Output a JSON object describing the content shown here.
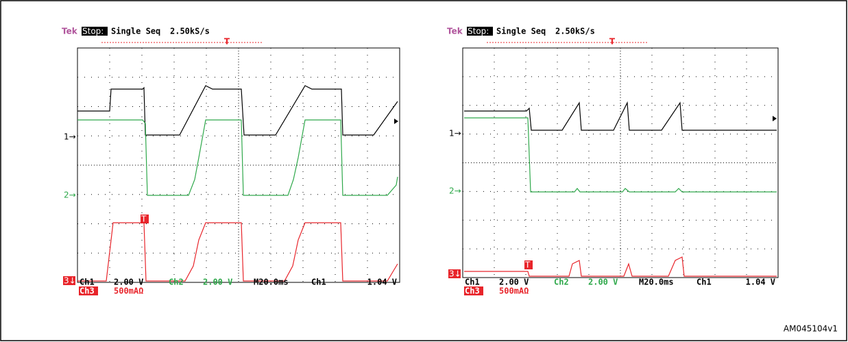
{
  "figure_id": "AM045104v1",
  "panels": [
    {
      "header": {
        "brand": "Tek",
        "status": "Stop:",
        "mode": "Single Seq",
        "rate": "2.50kS/s"
      },
      "trigger": "T",
      "markers": [
        "1→",
        "2→",
        "3↓"
      ],
      "footer": {
        "ch1": "Ch1",
        "ch1_scale": "2.00 V",
        "ch2": "Ch2",
        "ch2_scale": "2.00 V",
        "timebase": "M20.0ms",
        "trig_source": "Ch1",
        "trig_level": "1.04 V",
        "ch3": "Ch3",
        "ch3_scale": "500mAΩ"
      }
    },
    {
      "header": {
        "brand": "Tek",
        "status": "Stop:",
        "mode": "Single Seq",
        "rate": "2.50kS/s"
      },
      "trigger": "T",
      "markers": [
        "1→",
        "2→",
        "3↓"
      ],
      "footer": {
        "ch1": "Ch1",
        "ch1_scale": "2.00 V",
        "ch2": "Ch2",
        "ch2_scale": "2.00 V",
        "timebase": "M20.0ms",
        "trig_source": "Ch1",
        "trig_level": "1.04 V",
        "ch3": "Ch3",
        "ch3_scale": "500mAΩ"
      }
    }
  ]
}
